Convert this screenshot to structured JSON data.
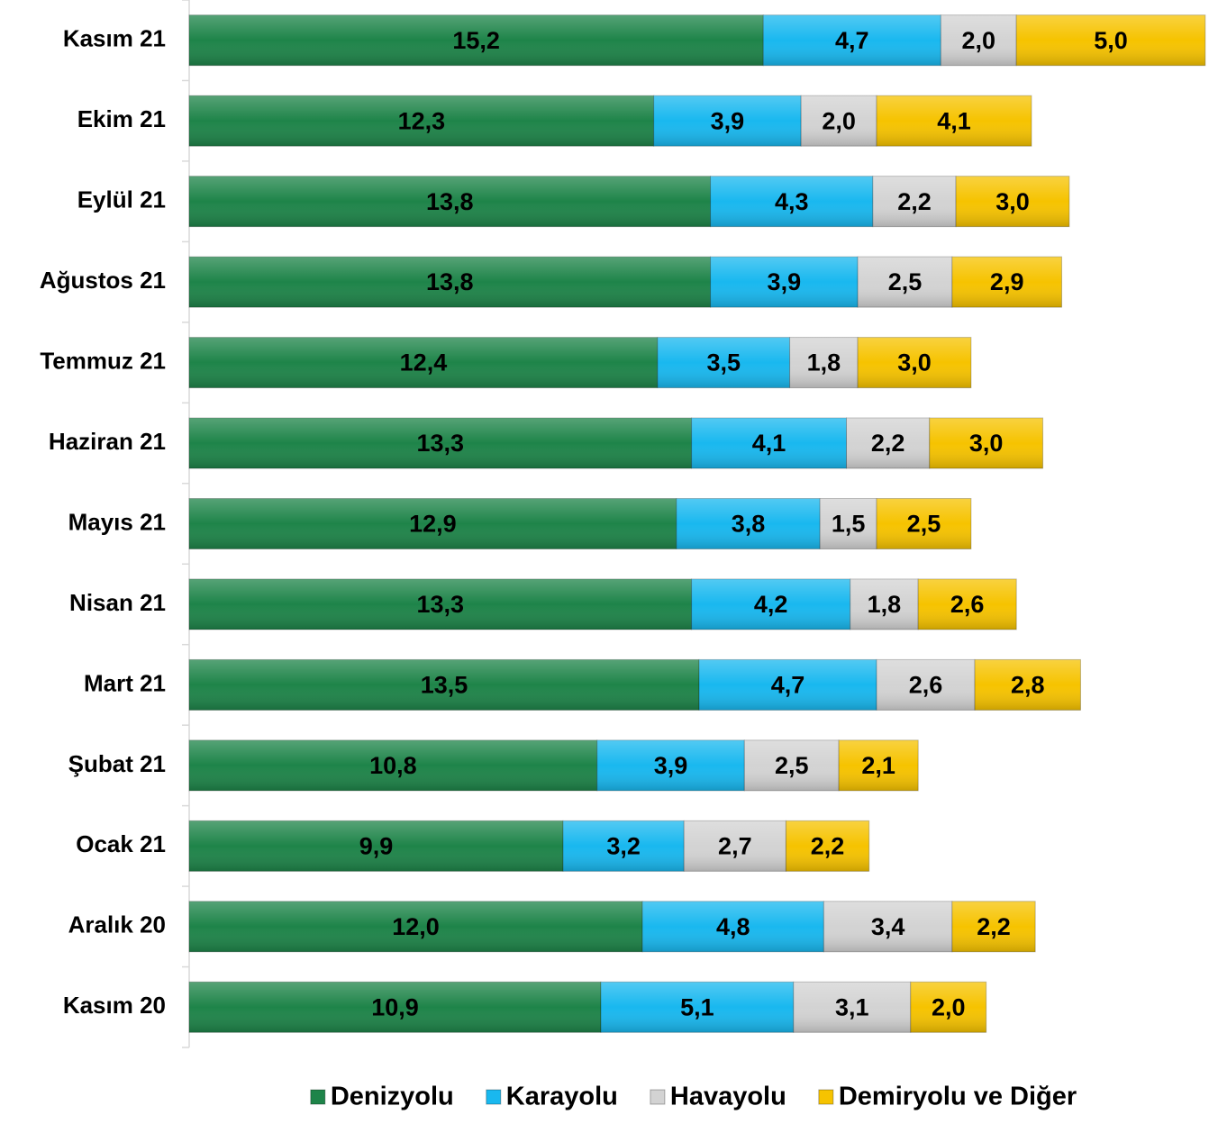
{
  "chart_data": {
    "type": "stacked_bar_horizontal",
    "categories": [
      "Kasım 21",
      "Ekim 21",
      "Eylül 21",
      "Ağustos 21",
      "Temmuz 21",
      "Haziran 21",
      "Mayıs 21",
      "Nisan 21",
      "Mart 21",
      "Şubat 21",
      "Ocak 21",
      "Aralık 20",
      "Kasım 20"
    ],
    "xlim": [
      0,
      27
    ],
    "legend": "bottom",
    "series": [
      {
        "name": "Denizyolu",
        "color": "#1e8449",
        "values": [
          15.2,
          12.3,
          13.8,
          13.8,
          12.4,
          13.3,
          12.9,
          13.3,
          13.5,
          10.8,
          9.9,
          12.0,
          10.9
        ],
        "value_labels": [
          "15,2",
          "12,3",
          "13,8",
          "13,8",
          "12,4",
          "13,3",
          "12,9",
          "13,3",
          "13,5",
          "10,8",
          "9,9",
          "12,0",
          "10,9"
        ]
      },
      {
        "name": "Karayolu",
        "color": "#19b8ef",
        "values": [
          4.7,
          3.9,
          4.3,
          3.9,
          3.5,
          4.1,
          3.8,
          4.2,
          4.7,
          3.9,
          3.2,
          4.8,
          5.1
        ],
        "value_labels": [
          "4,7",
          "3,9",
          "4,3",
          "3,9",
          "3,5",
          "4,1",
          "3,8",
          "4,2",
          "4,7",
          "3,9",
          "3,2",
          "4,8",
          "5,1"
        ]
      },
      {
        "name": "Havayolu",
        "color": "#d3d3d3",
        "values": [
          2.0,
          2.0,
          2.2,
          2.5,
          1.8,
          2.2,
          1.5,
          1.8,
          2.6,
          2.5,
          2.7,
          3.4,
          3.1
        ],
        "value_labels": [
          "2,0",
          "2,0",
          "2,2",
          "2,5",
          "1,8",
          "2,2",
          "1,5",
          "1,8",
          "2,6",
          "2,5",
          "2,7",
          "3,4",
          "3,1"
        ]
      },
      {
        "name": "Demiryolu ve Diğer",
        "color": "#f6c300",
        "values": [
          5.0,
          4.1,
          3.0,
          2.9,
          3.0,
          3.0,
          2.5,
          2.6,
          2.8,
          2.1,
          2.2,
          2.2,
          2.0
        ],
        "value_labels": [
          "5,0",
          "4,1",
          "3,0",
          "2,9",
          "3,0",
          "3,0",
          "2,5",
          "2,6",
          "2,8",
          "2,1",
          "2,2",
          "2,2",
          "2,0"
        ]
      }
    ]
  }
}
